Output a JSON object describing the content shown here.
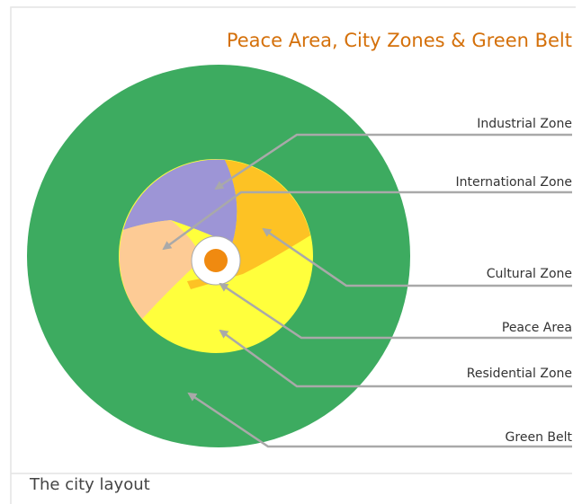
{
  "title": "Peace Area, City Zones & Green Belt",
  "labels": [
    "Industrial Zone",
    "International Zone",
    "Cultural Zone",
    "Peace Area",
    "Residential Zone",
    "Green Belt"
  ],
  "caption": "The city layout"
}
